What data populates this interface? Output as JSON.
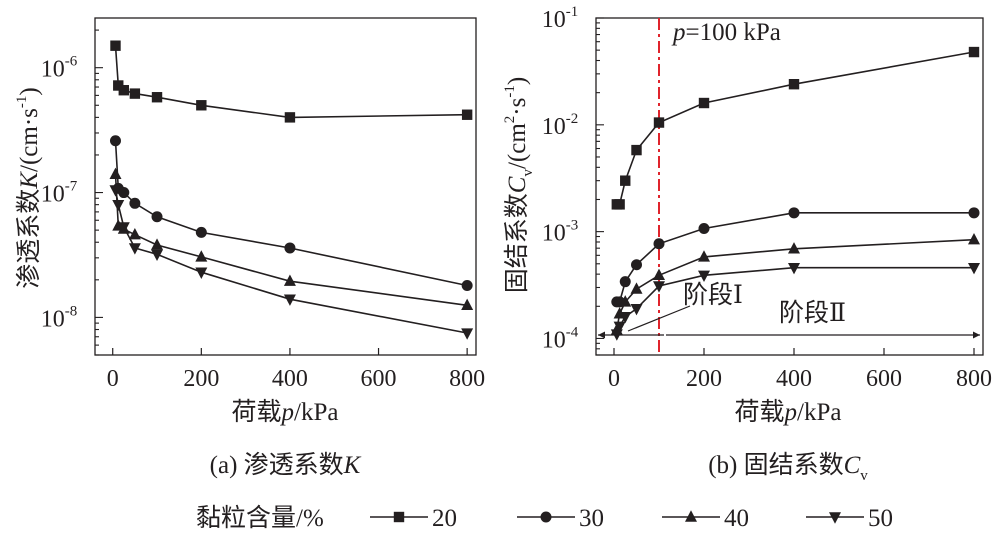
{
  "chart_data": [
    {
      "type": "line",
      "panel_label": "(a) 渗透系数",
      "panel_label_symbol": "K",
      "xlabel_cn": "荷载",
      "xlabel_sym": "p",
      "xlabel_unit": "/kPa",
      "ylabel_cn": "渗透系数",
      "ylabel_sym": "K",
      "ylabel_unit_1": "/(cm·s",
      "ylabel_unit_sup": "-1",
      "ylabel_unit_2": ")",
      "xlim": [
        -40,
        820
      ],
      "xticks": [
        "0",
        "200",
        "400",
        "600",
        "800"
      ],
      "y_scale": "log",
      "ylim": [
        5e-09,
        2.5e-06
      ],
      "yticks": [
        {
          "base": "10",
          "exp": "-8"
        },
        {
          "base": "10",
          "exp": "-7"
        },
        {
          "base": "10",
          "exp": "-6"
        }
      ],
      "x": [
        6.25,
        12.5,
        25,
        50,
        100,
        200,
        400,
        800
      ],
      "series": [
        {
          "name": "20",
          "marker": "square",
          "values": [
            1.5e-06,
            7.2e-07,
            6.6e-07,
            6.2e-07,
            5.8e-07,
            5e-07,
            4e-07,
            4.2e-07
          ]
        },
        {
          "name": "30",
          "marker": "circle",
          "values": [
            2.6e-07,
            1.08e-07,
            1e-07,
            8.2e-08,
            6.4e-08,
            4.8e-08,
            3.6e-08,
            1.8e-08
          ]
        },
        {
          "name": "40",
          "marker": "triangle-up",
          "values": [
            1.4e-07,
            5.4e-08,
            5.1e-08,
            4.6e-08,
            3.8e-08,
            3.05e-08,
            1.95e-08,
            1.25e-08
          ]
        },
        {
          "name": "50",
          "marker": "triangle-down",
          "values": [
            1.05e-07,
            8e-08,
            5.3e-08,
            3.6e-08,
            3.2e-08,
            2.3e-08,
            1.4e-08,
            7.5e-09
          ]
        }
      ]
    },
    {
      "type": "line",
      "panel_label": "(b) 固结系数",
      "panel_label_symbol": "C",
      "panel_label_sub": "v",
      "xlabel_cn": "荷载",
      "xlabel_sym": "p",
      "xlabel_unit": "/kPa",
      "ylabel_cn": "固结系数",
      "ylabel_sym": "C",
      "ylabel_sub": "v",
      "ylabel_unit_1": "/(cm",
      "ylabel_unit_sup1": "2",
      "ylabel_unit_2": "·s",
      "ylabel_unit_sup2": "-1",
      "ylabel_unit_3": ")",
      "xlim": [
        -40,
        820
      ],
      "xticks": [
        "0",
        "200",
        "400",
        "600",
        "800"
      ],
      "y_scale": "log",
      "ylim": [
        7e-05,
        0.1
      ],
      "yticks": [
        {
          "base": "10",
          "exp": "-4"
        },
        {
          "base": "10",
          "exp": "-3"
        },
        {
          "base": "10",
          "exp": "-2"
        },
        {
          "base": "10",
          "exp": "-1"
        }
      ],
      "x": [
        6.25,
        12.5,
        25,
        50,
        100,
        200,
        400,
        800
      ],
      "series": [
        {
          "name": "20",
          "marker": "square",
          "values": [
            0.0018,
            0.0018,
            0.003,
            0.0058,
            0.0105,
            0.016,
            0.024,
            0.048
          ]
        },
        {
          "name": "30",
          "marker": "circle",
          "values": [
            0.00022,
            0.00022,
            0.00034,
            0.00049,
            0.00077,
            0.00107,
            0.0015,
            0.0015
          ]
        },
        {
          "name": "40",
          "marker": "triangle-up",
          "values": [
            0.00012,
            0.00017,
            0.00022,
            0.00029,
            0.00039,
            0.00058,
            0.00069,
            0.00084
          ]
        },
        {
          "name": "50",
          "marker": "triangle-down",
          "values": [
            0.00011,
            0.00013,
            0.00016,
            0.00019,
            0.00031,
            0.00039,
            0.00046,
            0.00046
          ]
        }
      ],
      "reference_line": {
        "x": 100,
        "color": "#e0242c",
        "label_sym": "p",
        "label_rest": "=100 kPa"
      },
      "annotations": {
        "stage1": "阶段Ⅰ",
        "stage2": "阶段Ⅱ"
      }
    }
  ],
  "legend": {
    "title": "黏粒含量/%",
    "entries": [
      {
        "name": "20",
        "marker": "square"
      },
      {
        "name": "30",
        "marker": "circle"
      },
      {
        "name": "40",
        "marker": "triangle-up"
      },
      {
        "name": "50",
        "marker": "triangle-down"
      }
    ]
  },
  "colors": {
    "ink": "#231f20",
    "reference": "#e0242c"
  }
}
